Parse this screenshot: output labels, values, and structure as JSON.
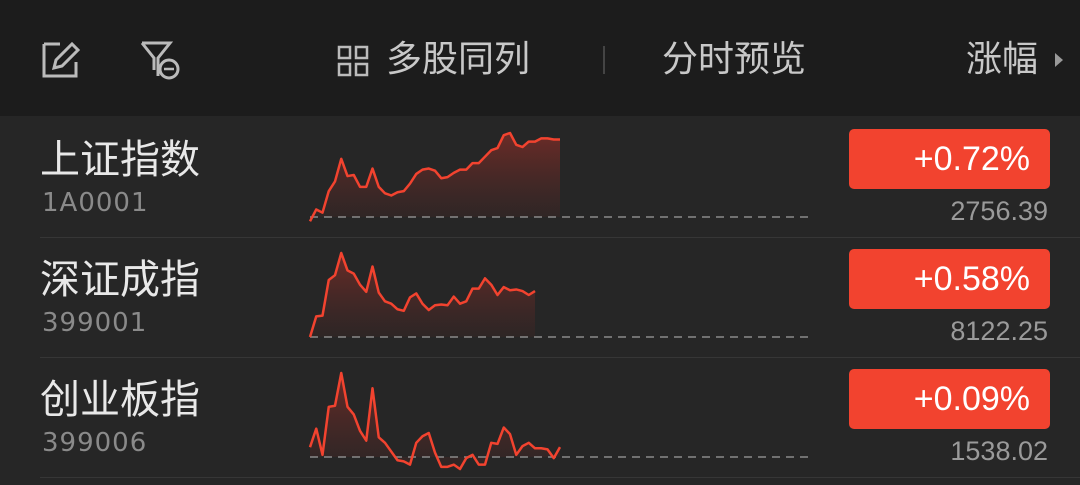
{
  "header": {
    "edit_icon": "edit-icon",
    "filter_icon": "filter-icon",
    "multi_column_icon": "grid-icon",
    "multi_column_label": "多股同列",
    "intraday_preview_label": "分时预览",
    "sort_label": "涨幅",
    "sort_arrow_icon": "triangle-right-icon"
  },
  "colors": {
    "up": "#f2432f",
    "background": "#262626",
    "header_bg": "#1c1c1c"
  },
  "stocks": [
    {
      "name": "上证指数",
      "code": "1A0001",
      "change": "+0.72%",
      "price": "2756.39",
      "sparkline": [
        -0.04,
        0.07,
        0.04,
        0.24,
        0.33,
        0.54,
        0.38,
        0.39,
        0.28,
        0.28,
        0.45,
        0.28,
        0.22,
        0.2,
        0.23,
        0.24,
        0.31,
        0.4,
        0.44,
        0.45,
        0.43,
        0.36,
        0.37,
        0.41,
        0.44,
        0.44,
        0.5,
        0.5,
        0.56,
        0.62,
        0.64,
        0.76,
        0.78,
        0.67,
        0.65,
        0.7,
        0.7,
        0.73,
        0.73,
        0.72,
        0.72
      ]
    },
    {
      "name": "深证成指",
      "code": "399001",
      "change": "+0.58%",
      "price": "8122.25",
      "sparkline": [
        0,
        0.26,
        0.27,
        0.72,
        0.78,
        1.06,
        0.84,
        0.8,
        0.66,
        0.57,
        0.89,
        0.56,
        0.45,
        0.42,
        0.35,
        0.33,
        0.5,
        0.55,
        0.42,
        0.34,
        0.4,
        0.41,
        0.4,
        0.51,
        0.42,
        0.45,
        0.61,
        0.61,
        0.74,
        0.66,
        0.53,
        0.63,
        0.59,
        0.6,
        0.58,
        0.53,
        0.58
      ]
    },
    {
      "name": "创业板指",
      "code": "399006",
      "change": "+0.09%",
      "price": "1538.02",
      "sparkline": [
        0.09,
        0.26,
        0.02,
        0.46,
        0.47,
        0.77,
        0.46,
        0.39,
        0.24,
        0.15,
        0.63,
        0.18,
        0.13,
        0.05,
        -0.03,
        -0.04,
        -0.07,
        0.13,
        0.19,
        0.22,
        0.04,
        -0.09,
        -0.09,
        -0.07,
        -0.11,
        -0.01,
        0.02,
        -0.07,
        -0.07,
        0.13,
        0.12,
        0.27,
        0.21,
        0.02,
        0.1,
        0.13,
        0.08,
        0.08,
        0.07,
        -0.01,
        0.09
      ]
    }
  ]
}
